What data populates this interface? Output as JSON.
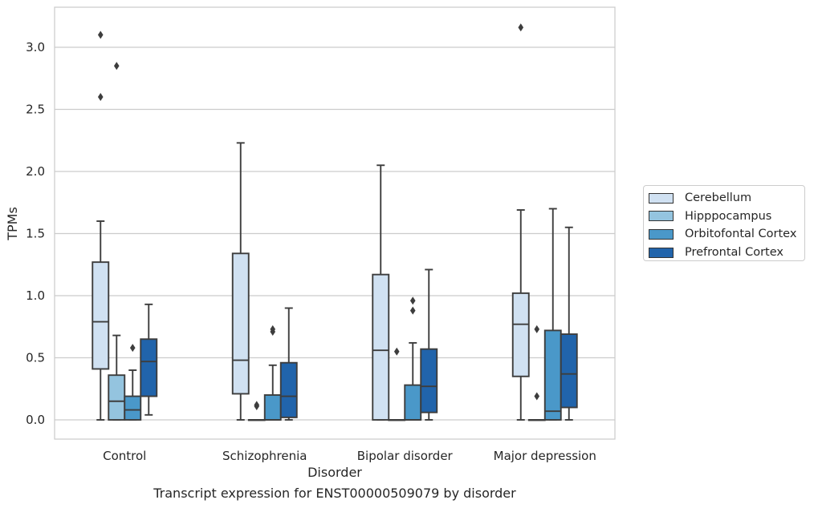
{
  "chart_data": {
    "type": "boxplot",
    "caption": "Transcript expression for ENST00000509079 by disorder",
    "xlabel": "Disorder",
    "ylabel": "TPMs",
    "ylim": [
      -0.15,
      3.3
    ],
    "yticks": [
      "0.0",
      "0.5",
      "1.0",
      "1.5",
      "2.0",
      "2.5",
      "3.0"
    ],
    "grid": "horizontal",
    "legend_placement": "right",
    "categories": [
      "Control",
      "Schizophrenia",
      "Bipolar disorder",
      "Major depression"
    ],
    "series": [
      {
        "name": "Cerebellum",
        "color": "#d0e1f2",
        "boxes": [
          {
            "whislo": 0.0,
            "q1": 0.41,
            "med": 0.79,
            "q3": 1.27,
            "whishi": 1.6,
            "fliers": [
              2.6,
              3.1
            ]
          },
          {
            "whislo": 0.0,
            "q1": 0.21,
            "med": 0.48,
            "q3": 1.34,
            "whishi": 2.23,
            "fliers": []
          },
          {
            "whislo": 0.0,
            "q1": 0.0,
            "med": 0.56,
            "q3": 1.17,
            "whishi": 2.05,
            "fliers": []
          },
          {
            "whislo": 0.0,
            "q1": 0.35,
            "med": 0.77,
            "q3": 1.02,
            "whishi": 1.69,
            "fliers": [
              3.16
            ]
          }
        ]
      },
      {
        "name": "Hipppocampus",
        "color": "#94c4df",
        "boxes": [
          {
            "whislo": 0.0,
            "q1": 0.0,
            "med": 0.15,
            "q3": 0.36,
            "whishi": 0.68,
            "fliers": [
              2.85
            ]
          },
          {
            "whislo": 0.0,
            "q1": 0.0,
            "med": 0.0,
            "q3": 0.0,
            "whishi": 0.0,
            "fliers": [
              0.11,
              0.12
            ]
          },
          {
            "whislo": 0.0,
            "q1": 0.0,
            "med": 0.0,
            "q3": 0.0,
            "whishi": 0.0,
            "fliers": [
              0.55
            ]
          },
          {
            "whislo": 0.0,
            "q1": 0.0,
            "med": 0.0,
            "q3": 0.0,
            "whishi": 0.0,
            "fliers": [
              0.19,
              0.73
            ]
          }
        ]
      },
      {
        "name": "Orbitofontal Cortex",
        "color": "#4a98c9",
        "boxes": [
          {
            "whislo": 0.0,
            "q1": 0.0,
            "med": 0.08,
            "q3": 0.19,
            "whishi": 0.4,
            "fliers": [
              0.58
            ]
          },
          {
            "whislo": 0.0,
            "q1": 0.0,
            "med": 0.0,
            "q3": 0.2,
            "whishi": 0.44,
            "fliers": [
              0.71,
              0.73
            ]
          },
          {
            "whislo": 0.0,
            "q1": 0.0,
            "med": 0.0,
            "q3": 0.28,
            "whishi": 0.62,
            "fliers": [
              0.88,
              0.96
            ]
          },
          {
            "whislo": 0.0,
            "q1": 0.0,
            "med": 0.07,
            "q3": 0.72,
            "whishi": 1.7,
            "fliers": []
          }
        ]
      },
      {
        "name": "Prefrontal Cortex",
        "color": "#2164ab",
        "boxes": [
          {
            "whislo": 0.04,
            "q1": 0.19,
            "med": 0.47,
            "q3": 0.65,
            "whishi": 0.93,
            "fliers": []
          },
          {
            "whislo": 0.0,
            "q1": 0.02,
            "med": 0.19,
            "q3": 0.46,
            "whishi": 0.9,
            "fliers": []
          },
          {
            "whislo": 0.0,
            "q1": 0.06,
            "med": 0.27,
            "q3": 0.57,
            "whishi": 1.21,
            "fliers": []
          },
          {
            "whislo": 0.0,
            "q1": 0.1,
            "med": 0.37,
            "q3": 0.69,
            "whishi": 1.55,
            "fliers": []
          }
        ]
      }
    ]
  }
}
